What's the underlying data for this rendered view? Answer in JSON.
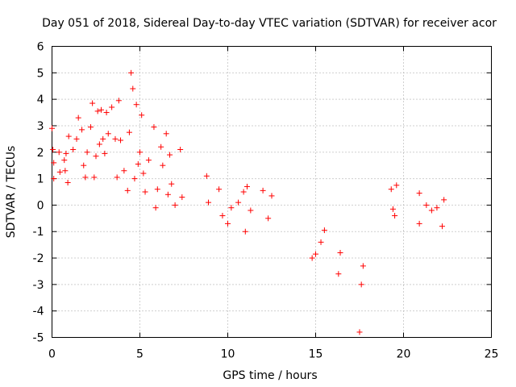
{
  "chart_data": {
    "type": "scatter",
    "title": "Day 051 of 2018, Sidereal Day-to-day VTEC variation (SDTVAR) for receiver acor",
    "xlabel": "GPS time / hours",
    "ylabel": "SDTVAR / TECUs",
    "xlim": [
      0,
      25
    ],
    "ylim": [
      -5,
      6
    ],
    "xticks": [
      0,
      5,
      10,
      15,
      20,
      25
    ],
    "yticks": [
      -5,
      -4,
      -3,
      -2,
      -1,
      0,
      1,
      2,
      3,
      4,
      5,
      6
    ],
    "grid": true,
    "marker": "plus",
    "color": "#ff0000",
    "series": [
      {
        "name": "acor",
        "points": [
          [
            0.0,
            2.9
          ],
          [
            0.05,
            2.1
          ],
          [
            0.1,
            1.6
          ],
          [
            0.1,
            1.0
          ],
          [
            0.4,
            2.0
          ],
          [
            0.45,
            1.25
          ],
          [
            0.7,
            1.7
          ],
          [
            0.75,
            1.3
          ],
          [
            0.8,
            1.95
          ],
          [
            0.9,
            0.85
          ],
          [
            0.95,
            2.6
          ],
          [
            1.2,
            2.1
          ],
          [
            1.4,
            2.5
          ],
          [
            1.5,
            3.3
          ],
          [
            1.7,
            2.85
          ],
          [
            1.8,
            1.5
          ],
          [
            1.9,
            1.05
          ],
          [
            2.0,
            2.0
          ],
          [
            2.2,
            2.95
          ],
          [
            2.3,
            3.85
          ],
          [
            2.4,
            1.05
          ],
          [
            2.5,
            1.85
          ],
          [
            2.6,
            3.55
          ],
          [
            2.7,
            2.3
          ],
          [
            2.8,
            3.6
          ],
          [
            2.9,
            2.5
          ],
          [
            3.0,
            1.95
          ],
          [
            3.1,
            3.5
          ],
          [
            3.2,
            2.7
          ],
          [
            3.4,
            3.7
          ],
          [
            3.6,
            2.5
          ],
          [
            3.7,
            1.05
          ],
          [
            3.8,
            3.95
          ],
          [
            3.9,
            2.45
          ],
          [
            4.1,
            1.3
          ],
          [
            4.3,
            0.55
          ],
          [
            4.4,
            2.75
          ],
          [
            4.5,
            5.0
          ],
          [
            4.6,
            4.4
          ],
          [
            4.7,
            1.0
          ],
          [
            4.8,
            3.8
          ],
          [
            4.9,
            1.55
          ],
          [
            5.0,
            2.0
          ],
          [
            5.1,
            3.4
          ],
          [
            5.2,
            1.2
          ],
          [
            5.3,
            0.5
          ],
          [
            5.5,
            1.7
          ],
          [
            5.8,
            2.95
          ],
          [
            5.9,
            -0.1
          ],
          [
            6.0,
            0.6
          ],
          [
            6.2,
            2.2
          ],
          [
            6.3,
            1.5
          ],
          [
            6.5,
            2.7
          ],
          [
            6.6,
            0.4
          ],
          [
            6.7,
            1.9
          ],
          [
            6.8,
            0.8
          ],
          [
            7.0,
            0.0
          ],
          [
            7.3,
            2.1
          ],
          [
            7.4,
            0.3
          ],
          [
            8.8,
            1.1
          ],
          [
            8.9,
            0.1
          ],
          [
            9.5,
            0.6
          ],
          [
            9.7,
            -0.4
          ],
          [
            10.0,
            -0.7
          ],
          [
            10.2,
            -0.1
          ],
          [
            10.6,
            0.1
          ],
          [
            10.9,
            0.5
          ],
          [
            11.0,
            -1.0
          ],
          [
            11.1,
            0.7
          ],
          [
            11.3,
            -0.2
          ],
          [
            12.0,
            0.55
          ],
          [
            12.3,
            -0.5
          ],
          [
            12.5,
            0.35
          ],
          [
            14.8,
            -2.0
          ],
          [
            15.0,
            -1.85
          ],
          [
            15.3,
            -1.4
          ],
          [
            15.5,
            -0.95
          ],
          [
            16.3,
            -2.6
          ],
          [
            16.4,
            -1.8
          ],
          [
            17.5,
            -4.8
          ],
          [
            17.6,
            -3.0
          ],
          [
            17.7,
            -2.3
          ],
          [
            19.3,
            0.6
          ],
          [
            19.4,
            -0.15
          ],
          [
            19.5,
            -0.4
          ],
          [
            19.6,
            0.75
          ],
          [
            20.9,
            0.45
          ],
          [
            20.9,
            -0.7
          ],
          [
            21.3,
            0.0
          ],
          [
            21.6,
            -0.2
          ],
          [
            21.9,
            -0.1
          ],
          [
            22.2,
            -0.8
          ],
          [
            22.3,
            0.2
          ]
        ]
      }
    ]
  }
}
